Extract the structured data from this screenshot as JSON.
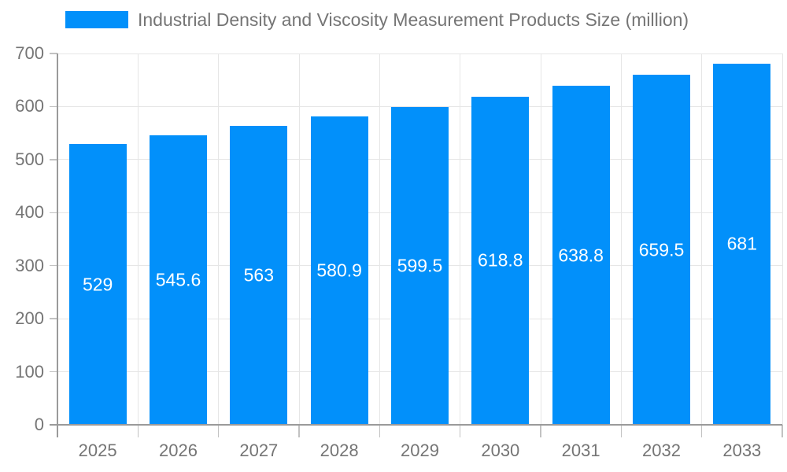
{
  "chart_data": {
    "type": "bar",
    "title": "Industrial Density and Viscosity Measurement Products Size (million)",
    "categories": [
      "2025",
      "2026",
      "2027",
      "2028",
      "2029",
      "2030",
      "2031",
      "2032",
      "2033"
    ],
    "series": [
      {
        "name": "Industrial Density and Viscosity Measurement Products Size (million)",
        "values": [
          529,
          545.6,
          563,
          580.9,
          599.5,
          618.8,
          638.8,
          659.5,
          681
        ]
      }
    ],
    "value_labels": [
      "529",
      "545.6",
      "563",
      "580.9",
      "599.5",
      "618.8",
      "638.8",
      "659.5",
      "681"
    ],
    "ylim": [
      0,
      700
    ],
    "ytick_labels": [
      "0",
      "100",
      "200",
      "300",
      "400",
      "500",
      "600",
      "700"
    ],
    "grid": true,
    "legend_position": "top-left",
    "colors": {
      "bar": "#0290fa",
      "bar_label_text": "#ffffff",
      "axis_text": "#757575",
      "gridline": "#e6e6e6",
      "axis_line": "#9a9a9a",
      "tick": "#c2c2c2"
    }
  }
}
